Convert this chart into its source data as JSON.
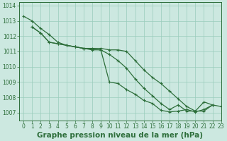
{
  "background_color": "#cce8e0",
  "grid_color": "#99ccbb",
  "line_color": "#2d6e3a",
  "title": "Graphe pression niveau de la mer (hPa)",
  "xlim": [
    -0.5,
    23
  ],
  "ylim": [
    1006.5,
    1014.2
  ],
  "yticks": [
    1007,
    1008,
    1009,
    1010,
    1011,
    1012,
    1013,
    1014
  ],
  "xticks": [
    0,
    1,
    2,
    3,
    4,
    5,
    6,
    7,
    8,
    9,
    10,
    11,
    12,
    13,
    14,
    15,
    16,
    17,
    18,
    19,
    20,
    21,
    22,
    23
  ],
  "series": [
    {
      "x": [
        0,
        1,
        2,
        3,
        4,
        5,
        6,
        7,
        8,
        9,
        10,
        11,
        12,
        13,
        14,
        15,
        16,
        17,
        18,
        19,
        20,
        21,
        22
      ],
      "y": [
        1013.3,
        1013.0,
        1012.5,
        1012.1,
        1011.6,
        1011.4,
        1011.3,
        1011.2,
        1011.1,
        1011.1,
        1010.8,
        1010.4,
        1009.9,
        1009.2,
        1008.6,
        1008.1,
        1007.6,
        1007.2,
        1007.5,
        1007.1,
        1007.1,
        1007.7,
        1007.5
      ]
    },
    {
      "x": [
        1,
        2,
        3,
        4,
        5,
        6,
        7,
        8,
        9,
        10,
        11,
        12,
        13,
        14,
        15,
        16,
        17,
        18,
        19,
        20,
        21,
        22
      ],
      "y": [
        1012.6,
        1012.2,
        1011.6,
        1011.5,
        1011.4,
        1011.3,
        1011.2,
        1011.2,
        1011.2,
        1011.1,
        1011.1,
        1011.0,
        1010.4,
        1009.8,
        1009.3,
        1008.9,
        1008.4,
        1007.9,
        1007.4,
        1007.1,
        1007.1,
        1007.5
      ]
    },
    {
      "x": [
        1,
        2,
        3,
        4,
        5,
        6,
        7,
        8,
        9,
        10,
        11,
        12,
        13,
        14,
        15,
        16,
        17,
        18,
        19,
        20,
        21,
        22,
        23
      ],
      "y": [
        1012.6,
        1012.2,
        1011.6,
        1011.5,
        1011.4,
        1011.3,
        1011.2,
        1011.15,
        1011.1,
        1009.0,
        1008.9,
        1008.5,
        1008.2,
        1007.8,
        1007.6,
        1007.15,
        1007.05,
        1007.1,
        1007.2,
        1007.05,
        1007.2,
        1007.5,
        1007.4
      ]
    }
  ],
  "marker": "+",
  "markersize": 3.5,
  "linewidth": 0.9,
  "title_fontsize": 7.5,
  "tick_fontsize": 5.5
}
